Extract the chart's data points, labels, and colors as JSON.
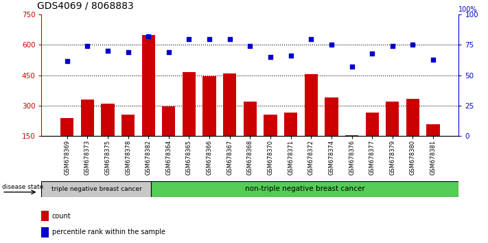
{
  "title": "GDS4069 / 8068883",
  "samples": [
    "GSM678369",
    "GSM678373",
    "GSM678375",
    "GSM678378",
    "GSM678382",
    "GSM678364",
    "GSM678365",
    "GSM678366",
    "GSM678367",
    "GSM678368",
    "GSM678370",
    "GSM678371",
    "GSM678372",
    "GSM678374",
    "GSM678376",
    "GSM678377",
    "GSM678379",
    "GSM678380",
    "GSM678381"
  ],
  "counts": [
    240,
    330,
    310,
    255,
    650,
    295,
    465,
    445,
    460,
    320,
    255,
    265,
    455,
    340,
    155,
    265,
    320,
    335,
    210
  ],
  "percentiles": [
    62,
    74,
    70,
    69,
    82,
    69,
    80,
    80,
    80,
    74,
    65,
    66,
    80,
    75,
    57,
    68,
    74,
    75,
    63
  ],
  "group1_count": 5,
  "group1_label": "triple negative breast cancer",
  "group2_label": "non-triple negative breast cancer",
  "bar_color": "#cc0000",
  "dot_color": "#0000cc",
  "ylim_left": [
    150,
    750
  ],
  "ylim_right": [
    0,
    100
  ],
  "yticks_left": [
    150,
    300,
    450,
    600,
    750
  ],
  "yticks_right": [
    0,
    25,
    50,
    75,
    100
  ],
  "ylabel_left_color": "#cc0000",
  "ylabel_right_color": "#0000cc",
  "group_bar_color1": "#c8c8c8",
  "group_bar_color2": "#55cc55",
  "legend_count_label": "count",
  "legend_pct_label": "percentile rank within the sample",
  "disease_state_label": "disease state",
  "dotted_line_color": "#000000"
}
